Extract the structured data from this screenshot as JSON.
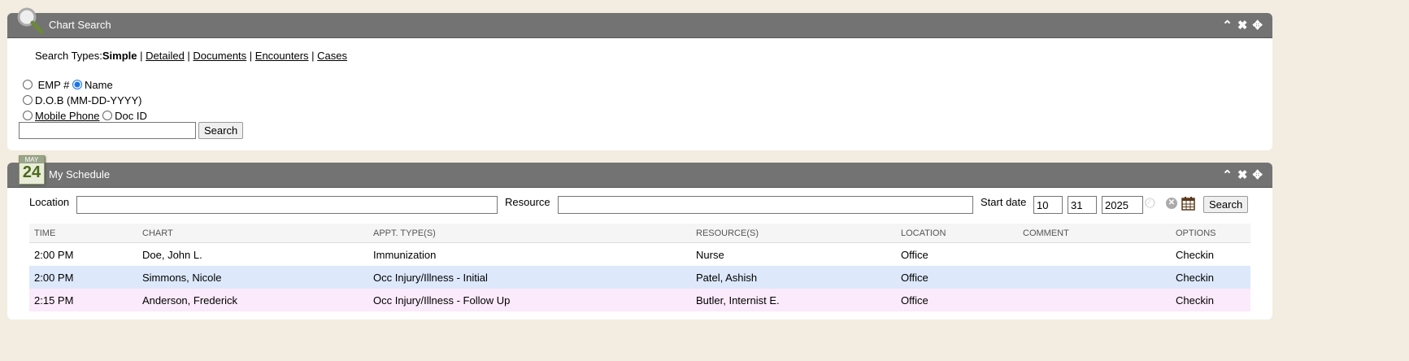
{
  "chart_search": {
    "title": "Chart Search",
    "search_types_label": "Search Types:",
    "types": [
      "Simple",
      "Detailed",
      "Documents",
      "Encounters",
      "Cases"
    ],
    "radios": {
      "emp": "EMP #",
      "name": "Name",
      "dob": "D.O.B (MM-DD-YYYY)",
      "mobile": "Mobile Phone",
      "docid": "Doc ID"
    },
    "selected": "Name",
    "query": "",
    "search_label": "Search"
  },
  "schedule": {
    "title": "My Schedule",
    "icon_month": "MAY",
    "icon_day": "24",
    "location_label": "Location",
    "location": "",
    "resource_label": "Resource",
    "resource": "",
    "start_date_label": "Start date",
    "month": "10",
    "day": "31",
    "year": "2025",
    "search_label": "Search",
    "columns": [
      "TIME",
      "CHART",
      "APPT. TYPE(S)",
      "RESOURCE(S)",
      "LOCATION",
      "COMMENT",
      "OPTIONS"
    ],
    "rows": [
      [
        "2:00 PM",
        "Doe, John L.",
        "Immunization",
        "Nurse",
        "Office",
        "",
        "Checkin"
      ],
      [
        "2:00 PM",
        "Simmons, Nicole",
        "Occ Injury/Illness - Initial",
        "Patel, Ashish",
        "Office",
        "",
        "Checkin"
      ],
      [
        "2:15 PM",
        "Anderson, Frederick",
        "Occ Injury/Illness - Follow Up",
        "Butler, Internist E.",
        "Office",
        "",
        "Checkin"
      ]
    ],
    "row_colors": [
      "#ffffff",
      "#dde8fb",
      "#fbeafb"
    ]
  },
  "icons": [
    "search-magnifier-icon",
    "calendar-24-icon",
    "chevron-up-icon",
    "close-icon",
    "move-icon",
    "clock-icon",
    "clear-icon",
    "calendar-icon"
  ]
}
